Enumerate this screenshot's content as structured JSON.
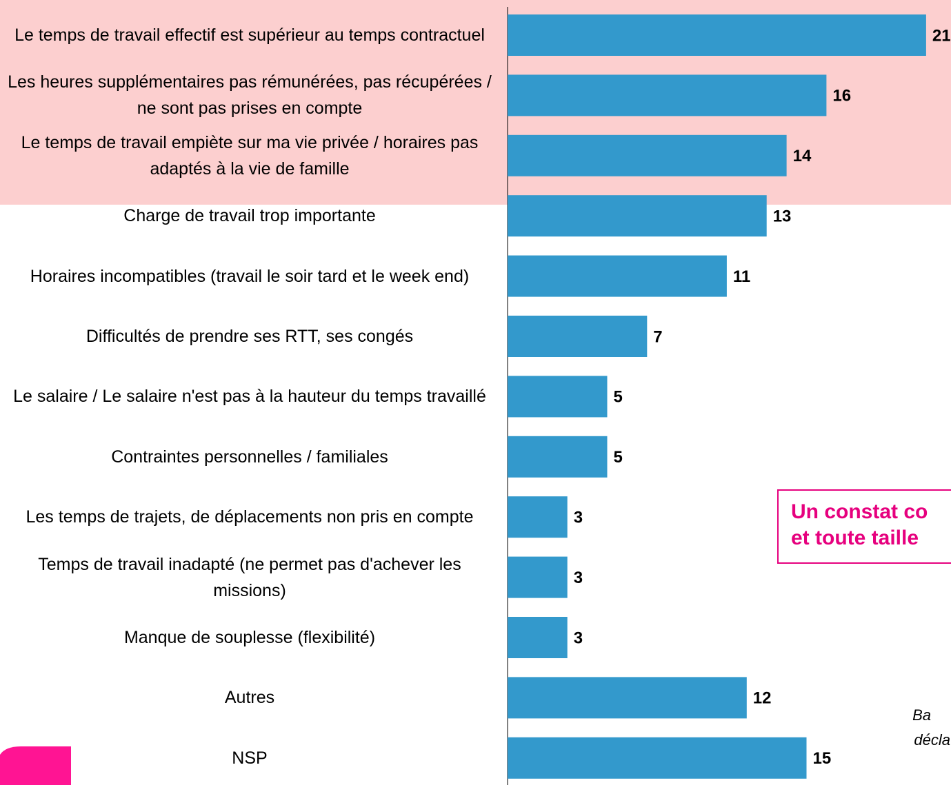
{
  "chart_data": {
    "type": "bar",
    "orientation": "horizontal",
    "categories": [
      "Le temps de travail effectif est supérieur au temps contractuel",
      "Les heures supplémentaires pas rémunérées, pas récupérées / ne sont pas prises en compte",
      "Le temps de travail empiète sur ma vie privée / horaires pas adaptés à la vie de famille",
      "Charge de travail trop importante",
      "Horaires incompatibles (travail le soir tard et le week end)",
      "Difficultés de prendre ses RTT, ses congés",
      "Le salaire / Le salaire n'est pas à la hauteur du temps travaillé",
      "Contraintes personnelles / familiales",
      "Les temps de trajets, de déplacements non pris en compte",
      "Temps de travail inadapté (ne permet pas d'achever les missions)",
      "Manque de souplesse (flexibilité)",
      "Autres",
      "NSP"
    ],
    "values": [
      21,
      16,
      14,
      13,
      11,
      7,
      5,
      5,
      3,
      3,
      3,
      12,
      15
    ],
    "color": "#3399cc",
    "annotation": [
      "Un constat co",
      "et toute taille"
    ],
    "footnote": [
      "Ba",
      "décla"
    ]
  }
}
